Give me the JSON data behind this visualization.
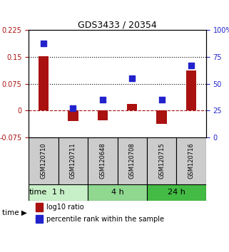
{
  "title": "GDS3433 / 20354",
  "samples": [
    "GSM120710",
    "GSM120711",
    "GSM120648",
    "GSM120708",
    "GSM120715",
    "GSM120716"
  ],
  "log10_ratio": [
    0.152,
    -0.03,
    -0.028,
    0.018,
    -0.038,
    0.112
  ],
  "percentile_rank": [
    0.88,
    0.27,
    0.35,
    0.55,
    0.35,
    0.67
  ],
  "bar_color": "#aa1111",
  "dot_color": "#2222cc",
  "ylim_left": [
    -0.075,
    0.225
  ],
  "ylim_right": [
    0,
    1.0
  ],
  "yticks_left": [
    -0.075,
    0,
    0.075,
    0.15,
    0.225
  ],
  "ytick_labels_left": [
    "-0.075",
    "0",
    "0.075",
    "0.15",
    "0.225"
  ],
  "yticks_right": [
    0,
    0.25,
    0.5,
    0.75,
    1.0
  ],
  "ytick_labels_right": [
    "0",
    "25",
    "50",
    "75",
    "100%"
  ],
  "hlines_dotted": [
    0.075,
    0.15
  ],
  "time_groups": [
    {
      "label": "1 h",
      "indices": [
        0,
        1
      ],
      "color": "#c8f0c8"
    },
    {
      "label": "4 h",
      "indices": [
        2,
        3
      ],
      "color": "#90d890"
    },
    {
      "label": "24 h",
      "indices": [
        4,
        5
      ],
      "color": "#44bb44"
    }
  ],
  "legend_bar_label": "log10 ratio",
  "legend_dot_label": "percentile rank within the sample",
  "xlabel_time": "time",
  "bar_width": 0.35,
  "dot_size": 40
}
